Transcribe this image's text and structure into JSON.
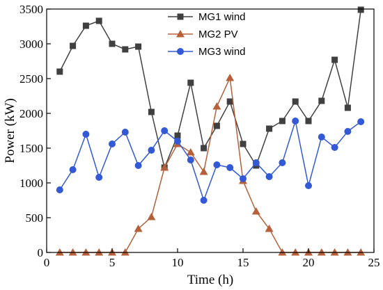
{
  "chart_data": {
    "type": "line",
    "xlabel": "Time (h)",
    "ylabel": "Power (kW)",
    "xlim": [
      0,
      25
    ],
    "ylim": [
      0,
      3500
    ],
    "xticks": [
      0,
      5,
      10,
      15,
      20,
      25
    ],
    "yticks": [
      0,
      500,
      1000,
      1500,
      2000,
      2500,
      3000,
      3500
    ],
    "grid": false,
    "legend_position": "top-center",
    "x": [
      1,
      2,
      3,
      4,
      5,
      6,
      7,
      8,
      9,
      10,
      11,
      12,
      13,
      14,
      15,
      16,
      17,
      18,
      19,
      20,
      21,
      22,
      23,
      24
    ],
    "series": [
      {
        "name": "MG1 wind",
        "color": "#404040",
        "marker": "square",
        "values": [
          2600,
          2970,
          3260,
          3330,
          3000,
          2920,
          2960,
          2020,
          1220,
          1680,
          2440,
          1500,
          1820,
          2170,
          1560,
          1250,
          1780,
          1890,
          2170,
          1890,
          2180,
          2770,
          2080,
          3490
        ]
      },
      {
        "name": "MG2 PV",
        "color": "#b5603a",
        "marker": "triangle",
        "values": [
          0,
          0,
          0,
          0,
          0,
          0,
          340,
          510,
          1220,
          1560,
          1440,
          1160,
          2100,
          2510,
          1030,
          590,
          340,
          0,
          0,
          0,
          0,
          0,
          0,
          0
        ]
      },
      {
        "name": "MG3 wind",
        "color": "#3359d6",
        "marker": "circle",
        "values": [
          900,
          1190,
          1700,
          1080,
          1560,
          1730,
          1250,
          1470,
          1750,
          1600,
          1330,
          750,
          1260,
          1220,
          1060,
          1290,
          1090,
          1290,
          1890,
          960,
          1660,
          1510,
          1740,
          1880
        ]
      }
    ]
  }
}
